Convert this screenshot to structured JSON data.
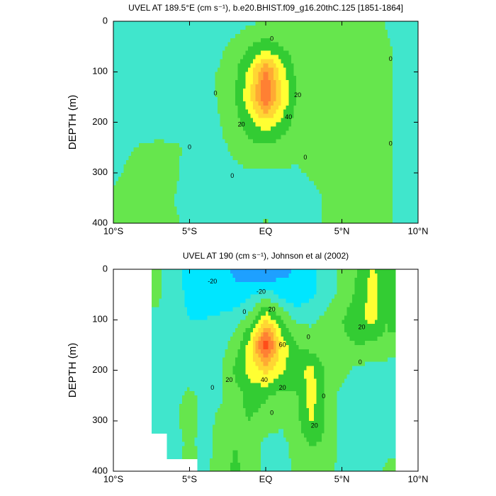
{
  "chart_data": [
    {
      "type": "contour",
      "title": "UVEL AT 189.5°E (cm s⁻¹), b.e20.BHIST.f09_g16.20thC.125 [1851-1864]",
      "y_label": "DEPTH (m)",
      "xlim": [
        -10,
        10
      ],
      "xticks": [
        {
          "value": -10,
          "label": "10°S"
        },
        {
          "value": -5,
          "label": "5°S"
        },
        {
          "value": 0,
          "label": "EQ"
        },
        {
          "value": 5,
          "label": "5°N"
        },
        {
          "value": 10,
          "label": "10°N"
        }
      ],
      "ylim": [
        400,
        0
      ],
      "yticks": [
        0,
        100,
        200,
        300,
        400
      ],
      "levels": [
        -30,
        -20,
        -10,
        0,
        10,
        20,
        30,
        40,
        50,
        60
      ],
      "colors": [
        "#1e64ff",
        "#1ea0ff",
        "#00e6ff",
        "#40e6cc",
        "#66e64d",
        "#33cc33",
        "#ffff33",
        "#ffd633",
        "#ffaa33",
        "#ff8033",
        "#ff4d1a"
      ],
      "x": [
        -10,
        -9,
        -8,
        -7,
        -6,
        -5,
        -4,
        -3,
        -2,
        -1,
        0,
        1,
        2,
        3,
        4,
        5,
        6,
        7,
        8,
        9,
        10
      ],
      "y": [
        0,
        50,
        100,
        150,
        200,
        250,
        300,
        350,
        400
      ],
      "z": [
        [
          -5,
          -5,
          -5,
          -5,
          -5,
          -5,
          -5,
          -5,
          -5,
          -2,
          2,
          3,
          3,
          3,
          3,
          3,
          4,
          3,
          -1,
          -4,
          -5
        ],
        [
          -5,
          -5,
          -5,
          -5,
          -5,
          -5,
          -5,
          -2,
          3,
          10,
          14,
          10,
          5,
          4,
          4,
          4,
          3,
          4,
          1,
          -3,
          -5
        ],
        [
          -5,
          -5,
          -5,
          -5,
          -5,
          -4,
          -3,
          1,
          8,
          24,
          55,
          26,
          8,
          4,
          3,
          3,
          3,
          3,
          1,
          -3,
          -5
        ],
        [
          -5,
          -5,
          -5,
          -5,
          -5,
          -4,
          -3,
          1,
          10,
          30,
          62,
          32,
          10,
          4,
          3,
          3,
          3,
          3,
          1,
          -3,
          -5
        ],
        [
          -5,
          -5,
          -5,
          -5,
          -5,
          -4,
          -3,
          0,
          6,
          18,
          28,
          18,
          6,
          3,
          3,
          2,
          2,
          2,
          1,
          -3,
          -5
        ],
        [
          -3,
          -1,
          1,
          2,
          1,
          -1,
          -3,
          -2,
          2,
          6,
          8,
          5,
          2,
          2,
          2,
          2,
          2,
          2,
          1,
          -3,
          -5
        ],
        [
          -1,
          1,
          3,
          3,
          1,
          -2,
          -4,
          -4,
          -2,
          -1,
          -1,
          -1,
          -1,
          1,
          2,
          2,
          2,
          2,
          1,
          -3,
          -5
        ],
        [
          1,
          2,
          3,
          2,
          0,
          -3,
          -4,
          -4,
          -4,
          -4,
          -3,
          -3,
          -3,
          -2,
          1,
          2,
          2,
          2,
          1,
          -3,
          -5
        ],
        [
          2,
          3,
          3,
          3,
          1,
          -2,
          -4,
          -4,
          -4,
          -2,
          1,
          -2,
          -3,
          -3,
          1,
          2,
          2,
          2,
          1,
          -3,
          -5
        ]
      ],
      "contour_labels": [
        {
          "value": 0,
          "x": 0.4,
          "y": 35
        },
        {
          "value": 0,
          "x": -3.3,
          "y": 143
        },
        {
          "value": 0,
          "x": 8.2,
          "y": 75
        },
        {
          "value": 0,
          "x": 8.2,
          "y": 243
        },
        {
          "value": 0,
          "x": -5,
          "y": 250
        },
        {
          "value": 0,
          "x": -2.2,
          "y": 307
        },
        {
          "value": 0,
          "x": 2.6,
          "y": 270
        },
        {
          "value": 20,
          "x": 2.1,
          "y": 147
        },
        {
          "value": 20,
          "x": -1.6,
          "y": 205
        },
        {
          "value": 40,
          "x": 1.5,
          "y": 190
        }
      ]
    },
    {
      "type": "contour",
      "title": "UVEL AT 190 (cm s⁻¹), Johnson et al (2002)",
      "y_label": "DEPTH (m)",
      "xlim": [
        -10,
        10
      ],
      "xticks": [
        {
          "value": -10,
          "label": "10°S"
        },
        {
          "value": -5,
          "label": "5°S"
        },
        {
          "value": 0,
          "label": "EQ"
        },
        {
          "value": 5,
          "label": "5°N"
        },
        {
          "value": 10,
          "label": "10°N"
        }
      ],
      "ylim": [
        400,
        0
      ],
      "yticks": [
        0,
        100,
        200,
        300,
        400
      ],
      "levels": [
        -30,
        -20,
        -10,
        0,
        10,
        20,
        30,
        40,
        50,
        60
      ],
      "colors": [
        "#1e64ff",
        "#1ea0ff",
        "#00e6ff",
        "#40e6cc",
        "#66e64d",
        "#33cc33",
        "#ffff33",
        "#ffd633",
        "#ffaa33",
        "#ff8033",
        "#ff4d1a"
      ],
      "x": [
        -10,
        -9,
        -8,
        -7,
        -6,
        -5,
        -4,
        -3,
        -2,
        -1,
        0,
        1,
        2,
        3,
        4,
        5,
        6,
        7,
        8,
        9,
        10
      ],
      "y": [
        0,
        50,
        100,
        150,
        200,
        250,
        300,
        350,
        400
      ],
      "z": [
        [
          null,
          null,
          null,
          2,
          -8,
          -12,
          -14,
          -16,
          -22,
          -26,
          -32,
          -24,
          -18,
          -12,
          -6,
          2,
          10,
          22,
          12,
          null,
          null
        ],
        [
          null,
          null,
          null,
          1,
          -7,
          -12,
          -14,
          -16,
          -18,
          -12,
          -4,
          -14,
          -18,
          -12,
          -5,
          3,
          12,
          25,
          12,
          null,
          null
        ],
        [
          null,
          null,
          null,
          -2,
          -6,
          -10,
          -10,
          -8,
          -4,
          5,
          30,
          12,
          -2,
          -2,
          3,
          10,
          16,
          24,
          10,
          null,
          null
        ],
        [
          null,
          null,
          null,
          -3,
          -5,
          -6,
          -6,
          -4,
          4,
          26,
          72,
          28,
          10,
          5,
          5,
          8,
          10,
          8,
          6,
          null,
          null
        ],
        [
          null,
          null,
          null,
          -3,
          -4,
          -5,
          -5,
          -2,
          12,
          24,
          34,
          22,
          16,
          24,
          6,
          3,
          -3,
          -3,
          -3,
          null,
          null
        ],
        [
          null,
          null,
          null,
          -3,
          -2,
          2,
          -3,
          -2,
          6,
          14,
          12,
          6,
          8,
          26,
          6,
          -3,
          -4,
          -3,
          -3,
          null,
          null
        ],
        [
          null,
          null,
          null,
          -3,
          -2,
          4,
          -3,
          2,
          8,
          10,
          5,
          2,
          6,
          22,
          8,
          -3,
          -4,
          -3,
          -2,
          null,
          null
        ],
        [
          null,
          null,
          null,
          null,
          -4,
          2,
          -4,
          4,
          10,
          6,
          -3,
          -4,
          4,
          10,
          8,
          -3,
          -4,
          -4,
          -4,
          null,
          null
        ],
        [
          null,
          null,
          null,
          null,
          null,
          null,
          -3,
          6,
          12,
          6,
          -4,
          -5,
          2,
          8,
          4,
          -4,
          -4,
          -2,
          2,
          null,
          null
        ]
      ],
      "contour_labels": [
        {
          "value": -20,
          "x": -3.5,
          "y": 25
        },
        {
          "value": -20,
          "x": -0.3,
          "y": 45
        },
        {
          "value": 20,
          "x": 0.4,
          "y": 80
        },
        {
          "value": 0,
          "x": -1.4,
          "y": 85
        },
        {
          "value": 0,
          "x": 2.8,
          "y": 135
        },
        {
          "value": 60,
          "x": 1.1,
          "y": 150
        },
        {
          "value": 20,
          "x": -2.4,
          "y": 220
        },
        {
          "value": 40,
          "x": -0.1,
          "y": 220
        },
        {
          "value": 20,
          "x": 1.1,
          "y": 235
        },
        {
          "value": 0,
          "x": -3.5,
          "y": 235
        },
        {
          "value": 0,
          "x": 0.4,
          "y": 285
        },
        {
          "value": 0,
          "x": 3.8,
          "y": 252
        },
        {
          "value": 20,
          "x": 3.2,
          "y": 310
        },
        {
          "value": 20,
          "x": 6.3,
          "y": 115
        },
        {
          "value": 0,
          "x": 6.2,
          "y": 185
        }
      ]
    }
  ]
}
